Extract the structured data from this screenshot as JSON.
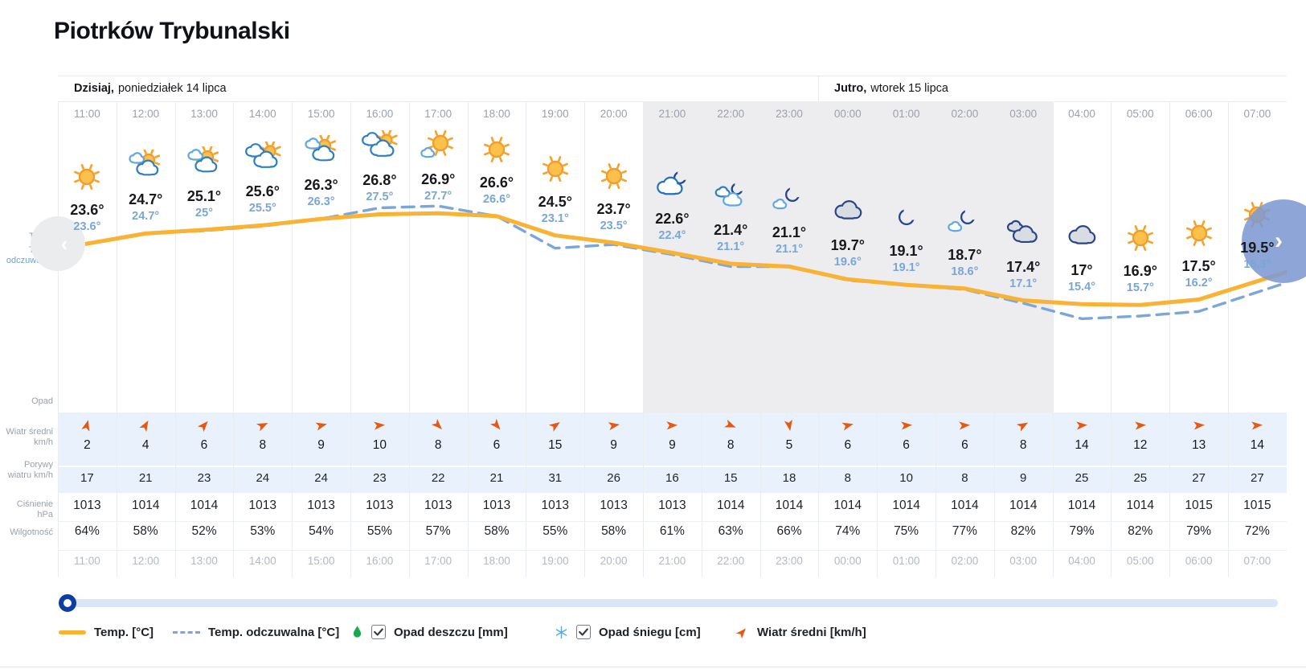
{
  "title": "Piotrków Trybunalski",
  "day_headers": [
    {
      "name": "Dzisiaj,",
      "date": "poniedziałek 14 lipca"
    },
    {
      "name": "Jutro,",
      "date": "wtorek 15 lipca"
    }
  ],
  "row_labels": {
    "temp": "Temp.",
    "feels": "Temp. odczuwalna",
    "precip": "Opad",
    "wind_avg": "Wiatr średni km/h",
    "wind_gusts": "Porywy wiatru km/h",
    "pressure": "Ciśnienie hPa",
    "humidity": "Wilgotność"
  },
  "columns": [
    {
      "hour": "11:00",
      "icon": "sun",
      "temp": "23.6°",
      "feels": "23.6°",
      "temp_c": 23.6,
      "feels_c": 23.6,
      "wind_deg": 15,
      "wind": "2",
      "gust": "17",
      "pressure": "1013",
      "humidity": "64%",
      "night": false
    },
    {
      "hour": "12:00",
      "icon": "sun_clouds",
      "temp": "24.7°",
      "feels": "24.7°",
      "temp_c": 24.7,
      "feels_c": 24.7,
      "wind_deg": 30,
      "wind": "4",
      "gust": "21",
      "pressure": "1014",
      "humidity": "58%",
      "night": false
    },
    {
      "hour": "13:00",
      "icon": "sun_clouds",
      "temp": "25.1°",
      "feels": "25°",
      "temp_c": 25.1,
      "feels_c": 25.0,
      "wind_deg": 42,
      "wind": "6",
      "gust": "23",
      "pressure": "1014",
      "humidity": "52%",
      "night": false
    },
    {
      "hour": "14:00",
      "icon": "clouds_sun",
      "temp": "25.6°",
      "feels": "25.5°",
      "temp_c": 25.6,
      "feels_c": 25.5,
      "wind_deg": 65,
      "wind": "8",
      "gust": "24",
      "pressure": "1013",
      "humidity": "53%",
      "night": false
    },
    {
      "hour": "15:00",
      "icon": "sun_clouds",
      "temp": "26.3°",
      "feels": "26.3°",
      "temp_c": 26.3,
      "feels_c": 26.3,
      "wind_deg": 76,
      "wind": "9",
      "gust": "24",
      "pressure": "1013",
      "humidity": "54%",
      "night": false
    },
    {
      "hour": "16:00",
      "icon": "clouds_sun",
      "temp": "26.8°",
      "feels": "27.5°",
      "temp_c": 26.8,
      "feels_c": 27.5,
      "wind_deg": 85,
      "wind": "10",
      "gust": "23",
      "pressure": "1013",
      "humidity": "55%",
      "night": false
    },
    {
      "hour": "17:00",
      "icon": "sun_small_cloud",
      "temp": "26.9°",
      "feels": "27.7°",
      "temp_c": 26.9,
      "feels_c": 27.7,
      "wind_deg": 135,
      "wind": "8",
      "gust": "22",
      "pressure": "1013",
      "humidity": "57%",
      "night": false
    },
    {
      "hour": "18:00",
      "icon": "sun",
      "temp": "26.6°",
      "feels": "26.6°",
      "temp_c": 26.6,
      "feels_c": 26.6,
      "wind_deg": 140,
      "wind": "6",
      "gust": "21",
      "pressure": "1013",
      "humidity": "58%",
      "night": false
    },
    {
      "hour": "19:00",
      "icon": "sun",
      "temp": "24.5°",
      "feels": "23.1°",
      "temp_c": 24.5,
      "feels_c": 23.1,
      "wind_deg": 55,
      "wind": "15",
      "gust": "31",
      "pressure": "1013",
      "humidity": "55%",
      "night": false
    },
    {
      "hour": "20:00",
      "icon": "sun",
      "temp": "23.7°",
      "feels": "23.5°",
      "temp_c": 23.7,
      "feels_c": 23.5,
      "wind_deg": 80,
      "wind": "9",
      "gust": "26",
      "pressure": "1013",
      "humidity": "58%",
      "night": false
    },
    {
      "hour": "21:00",
      "icon": "cloud_moon",
      "temp": "22.6°",
      "feels": "22.4°",
      "temp_c": 22.6,
      "feels_c": 22.4,
      "wind_deg": 88,
      "wind": "9",
      "gust": "16",
      "pressure": "1013",
      "humidity": "61%",
      "night": true
    },
    {
      "hour": "22:00",
      "icon": "clouds_moon",
      "temp": "21.4°",
      "feels": "21.1°",
      "temp_c": 21.4,
      "feels_c": 21.1,
      "wind_deg": 112,
      "wind": "8",
      "gust": "15",
      "pressure": "1014",
      "humidity": "63%",
      "night": true
    },
    {
      "hour": "23:00",
      "icon": "moon_small_cloud",
      "temp": "21.1°",
      "feels": "21.1°",
      "temp_c": 21.1,
      "feels_c": 21.1,
      "wind_deg": 170,
      "wind": "5",
      "gust": "18",
      "pressure": "1014",
      "humidity": "66%",
      "night": true
    },
    {
      "hour": "00:00",
      "icon": "cloud_night",
      "temp": "19.7°",
      "feels": "19.6°",
      "temp_c": 19.7,
      "feels_c": 19.6,
      "wind_deg": 76,
      "wind": "6",
      "gust": "8",
      "pressure": "1014",
      "humidity": "74%",
      "night": true
    },
    {
      "hour": "01:00",
      "icon": "moon",
      "temp": "19.1°",
      "feels": "19.1°",
      "temp_c": 19.1,
      "feels_c": 19.1,
      "wind_deg": 86,
      "wind": "6",
      "gust": "10",
      "pressure": "1014",
      "humidity": "75%",
      "night": true
    },
    {
      "hour": "02:00",
      "icon": "moon_small_cloud",
      "temp": "18.7°",
      "feels": "18.6°",
      "temp_c": 18.7,
      "feels_c": 18.6,
      "wind_deg": 86,
      "wind": "6",
      "gust": "8",
      "pressure": "1014",
      "humidity": "77%",
      "night": true
    },
    {
      "hour": "03:00",
      "icon": "clouds_night",
      "temp": "17.4°",
      "feels": "17.1°",
      "temp_c": 17.4,
      "feels_c": 17.1,
      "wind_deg": 60,
      "wind": "8",
      "gust": "9",
      "pressure": "1014",
      "humidity": "82%",
      "night": true
    },
    {
      "hour": "04:00",
      "icon": "cloud_night",
      "temp": "17°",
      "feels": "15.4°",
      "temp_c": 17.0,
      "feels_c": 15.4,
      "wind_deg": 86,
      "wind": "14",
      "gust": "25",
      "pressure": "1014",
      "humidity": "79%",
      "night": false
    },
    {
      "hour": "05:00",
      "icon": "sun",
      "temp": "16.9°",
      "feels": "15.7°",
      "temp_c": 16.9,
      "feels_c": 15.7,
      "wind_deg": 86,
      "wind": "12",
      "gust": "25",
      "pressure": "1014",
      "humidity": "82%",
      "night": false
    },
    {
      "hour": "06:00",
      "icon": "sun",
      "temp": "17.5°",
      "feels": "16.2°",
      "temp_c": 17.5,
      "feels_c": 16.2,
      "wind_deg": 86,
      "wind": "13",
      "gust": "27",
      "pressure": "1015",
      "humidity": "79%",
      "night": false
    },
    {
      "hour": "07:00",
      "icon": "sun",
      "temp": "19.5°",
      "feels": "18.3°",
      "temp_c": 19.5,
      "feels_c": 18.3,
      "wind_deg": 86,
      "wind": "14",
      "gust": "27",
      "pressure": "1015",
      "humidity": "72%",
      "night": false
    }
  ],
  "legend": {
    "temp": "Temp. [°C]",
    "feels": "Temp. odczuwalna [°C]",
    "rain": "Opad deszczu [mm]",
    "snow": "Opad śniegu [cm]",
    "wind": "Wiatr średni [km/h]",
    "rain_checked": true,
    "snow_checked": true
  },
  "nav": {
    "prev_icon": "‹",
    "next_icon": "›"
  },
  "colors": {
    "temp_line": "#f9b234",
    "feels_line": "#7ba6d9",
    "wind_arrow": "#e65912",
    "night_shade": "#ededf0",
    "wind_band": "#e9f2fc"
  }
}
